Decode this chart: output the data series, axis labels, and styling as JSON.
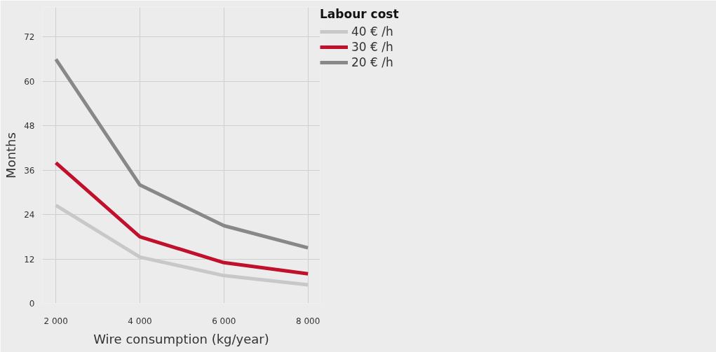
{
  "chart_data": {
    "type": "line",
    "xlabel": "Wire consumption (kg/year)",
    "ylabel": "Months",
    "legend_title": "Labour cost",
    "legend": "top right",
    "x": [
      2000,
      4000,
      6000,
      8000
    ],
    "xlim": [
      1680,
      8290
    ],
    "xticks": [
      {
        "value": 2000,
        "label": "2 000"
      },
      {
        "value": 4000,
        "label": "4 000"
      },
      {
        "value": 6000,
        "label": "6 000"
      },
      {
        "value": 8000,
        "label": "8 000"
      }
    ],
    "ylim": [
      0,
      80
    ],
    "yticks": [
      0,
      12,
      24,
      36,
      48,
      60,
      72
    ],
    "grid": true,
    "marker": "none",
    "line_style": "solid",
    "series": [
      {
        "name": "40 € /h",
        "color": "#c8c8c8",
        "values": [
          26.5,
          12.5,
          7.5,
          5
        ]
      },
      {
        "name": "30 € /h",
        "color": "#c0102c",
        "values": [
          38,
          18,
          11,
          8
        ]
      },
      {
        "name": "20 € /h",
        "color": "#888888",
        "values": [
          66,
          32,
          21,
          15
        ]
      }
    ]
  }
}
